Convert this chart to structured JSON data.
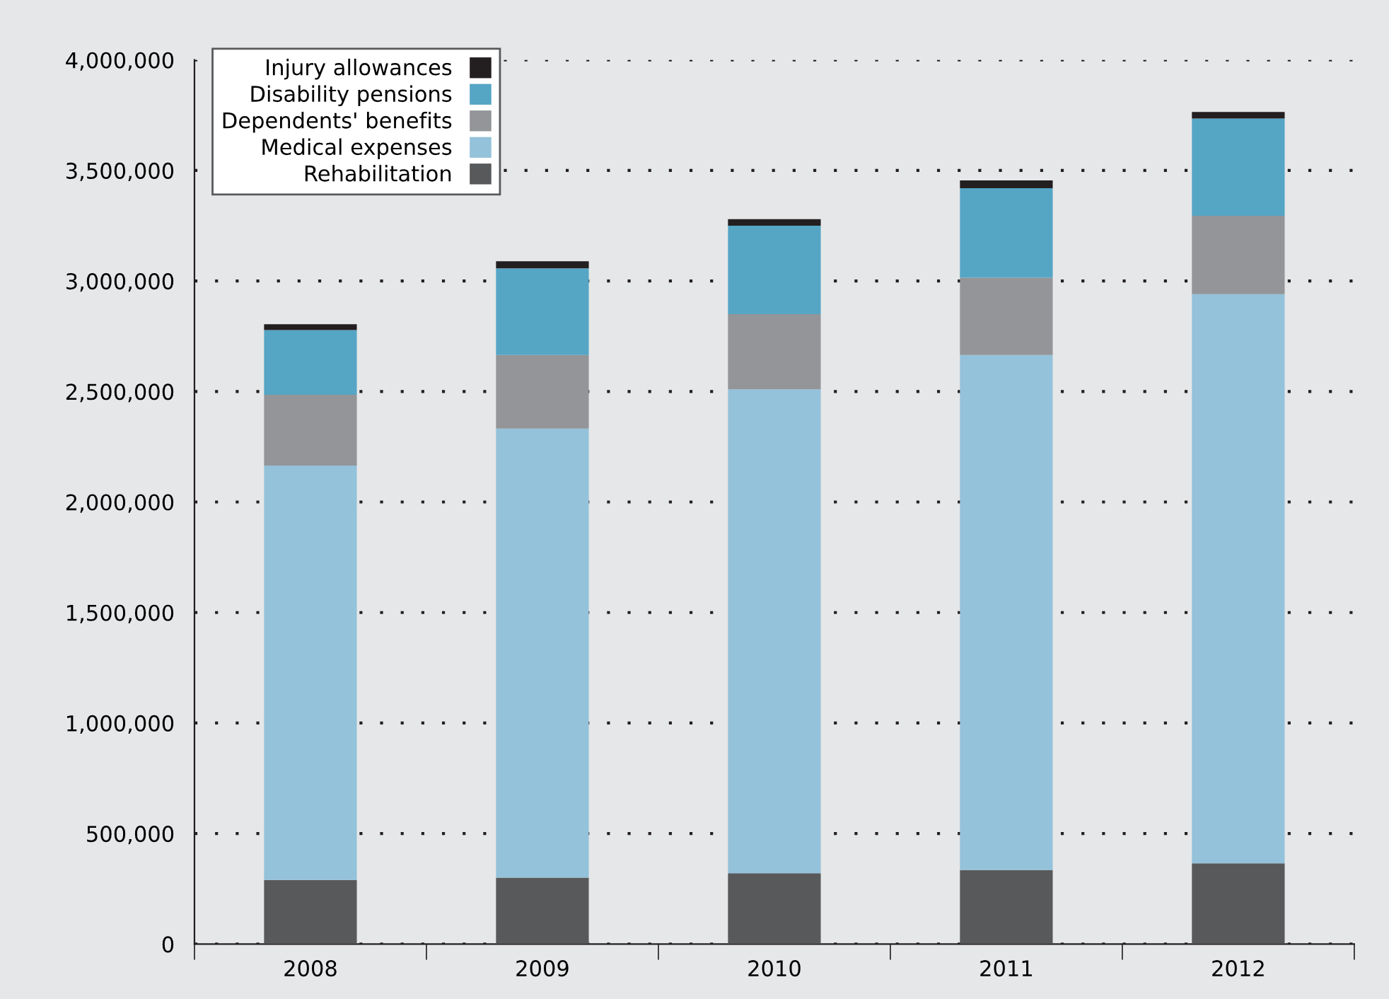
{
  "chart_data": {
    "type": "bar",
    "stacked": true,
    "categories": [
      "2008",
      "2009",
      "2010",
      "2011",
      "2012"
    ],
    "series": [
      {
        "name": "Rehabilitation",
        "color": "#58595b",
        "values": [
          290000,
          300000,
          320000,
          335000,
          365000
        ]
      },
      {
        "name": "Medical expenses",
        "color": "#94c2da",
        "values": [
          1875000,
          2032000,
          2190000,
          2330000,
          2575000
        ]
      },
      {
        "name": "Dependents' benefits",
        "color": "#939598",
        "values": [
          320000,
          333000,
          340000,
          350000,
          355000
        ]
      },
      {
        "name": "Disability pensions",
        "color": "#55a5c5",
        "values": [
          293000,
          392000,
          400000,
          405000,
          440000
        ]
      },
      {
        "name": "Injury allowances",
        "color": "#231f20",
        "values": [
          26000,
          32000,
          30000,
          35000,
          30000
        ]
      }
    ],
    "ylim": [
      0,
      4000000
    ],
    "yticks": [
      {
        "value": 0,
        "label": "0"
      },
      {
        "value": 500000,
        "label": "500,000"
      },
      {
        "value": 1000000,
        "label": "1,000,000"
      },
      {
        "value": 1500000,
        "label": "1,500,000"
      },
      {
        "value": 2000000,
        "label": "2,000,000"
      },
      {
        "value": 2500000,
        "label": "2,500,000"
      },
      {
        "value": 3000000,
        "label": "3,000,000"
      },
      {
        "value": 3500000,
        "label": "3,500,000"
      },
      {
        "value": 4000000,
        "label": "4,000,000"
      }
    ],
    "grid": "y",
    "legend": "top left"
  }
}
